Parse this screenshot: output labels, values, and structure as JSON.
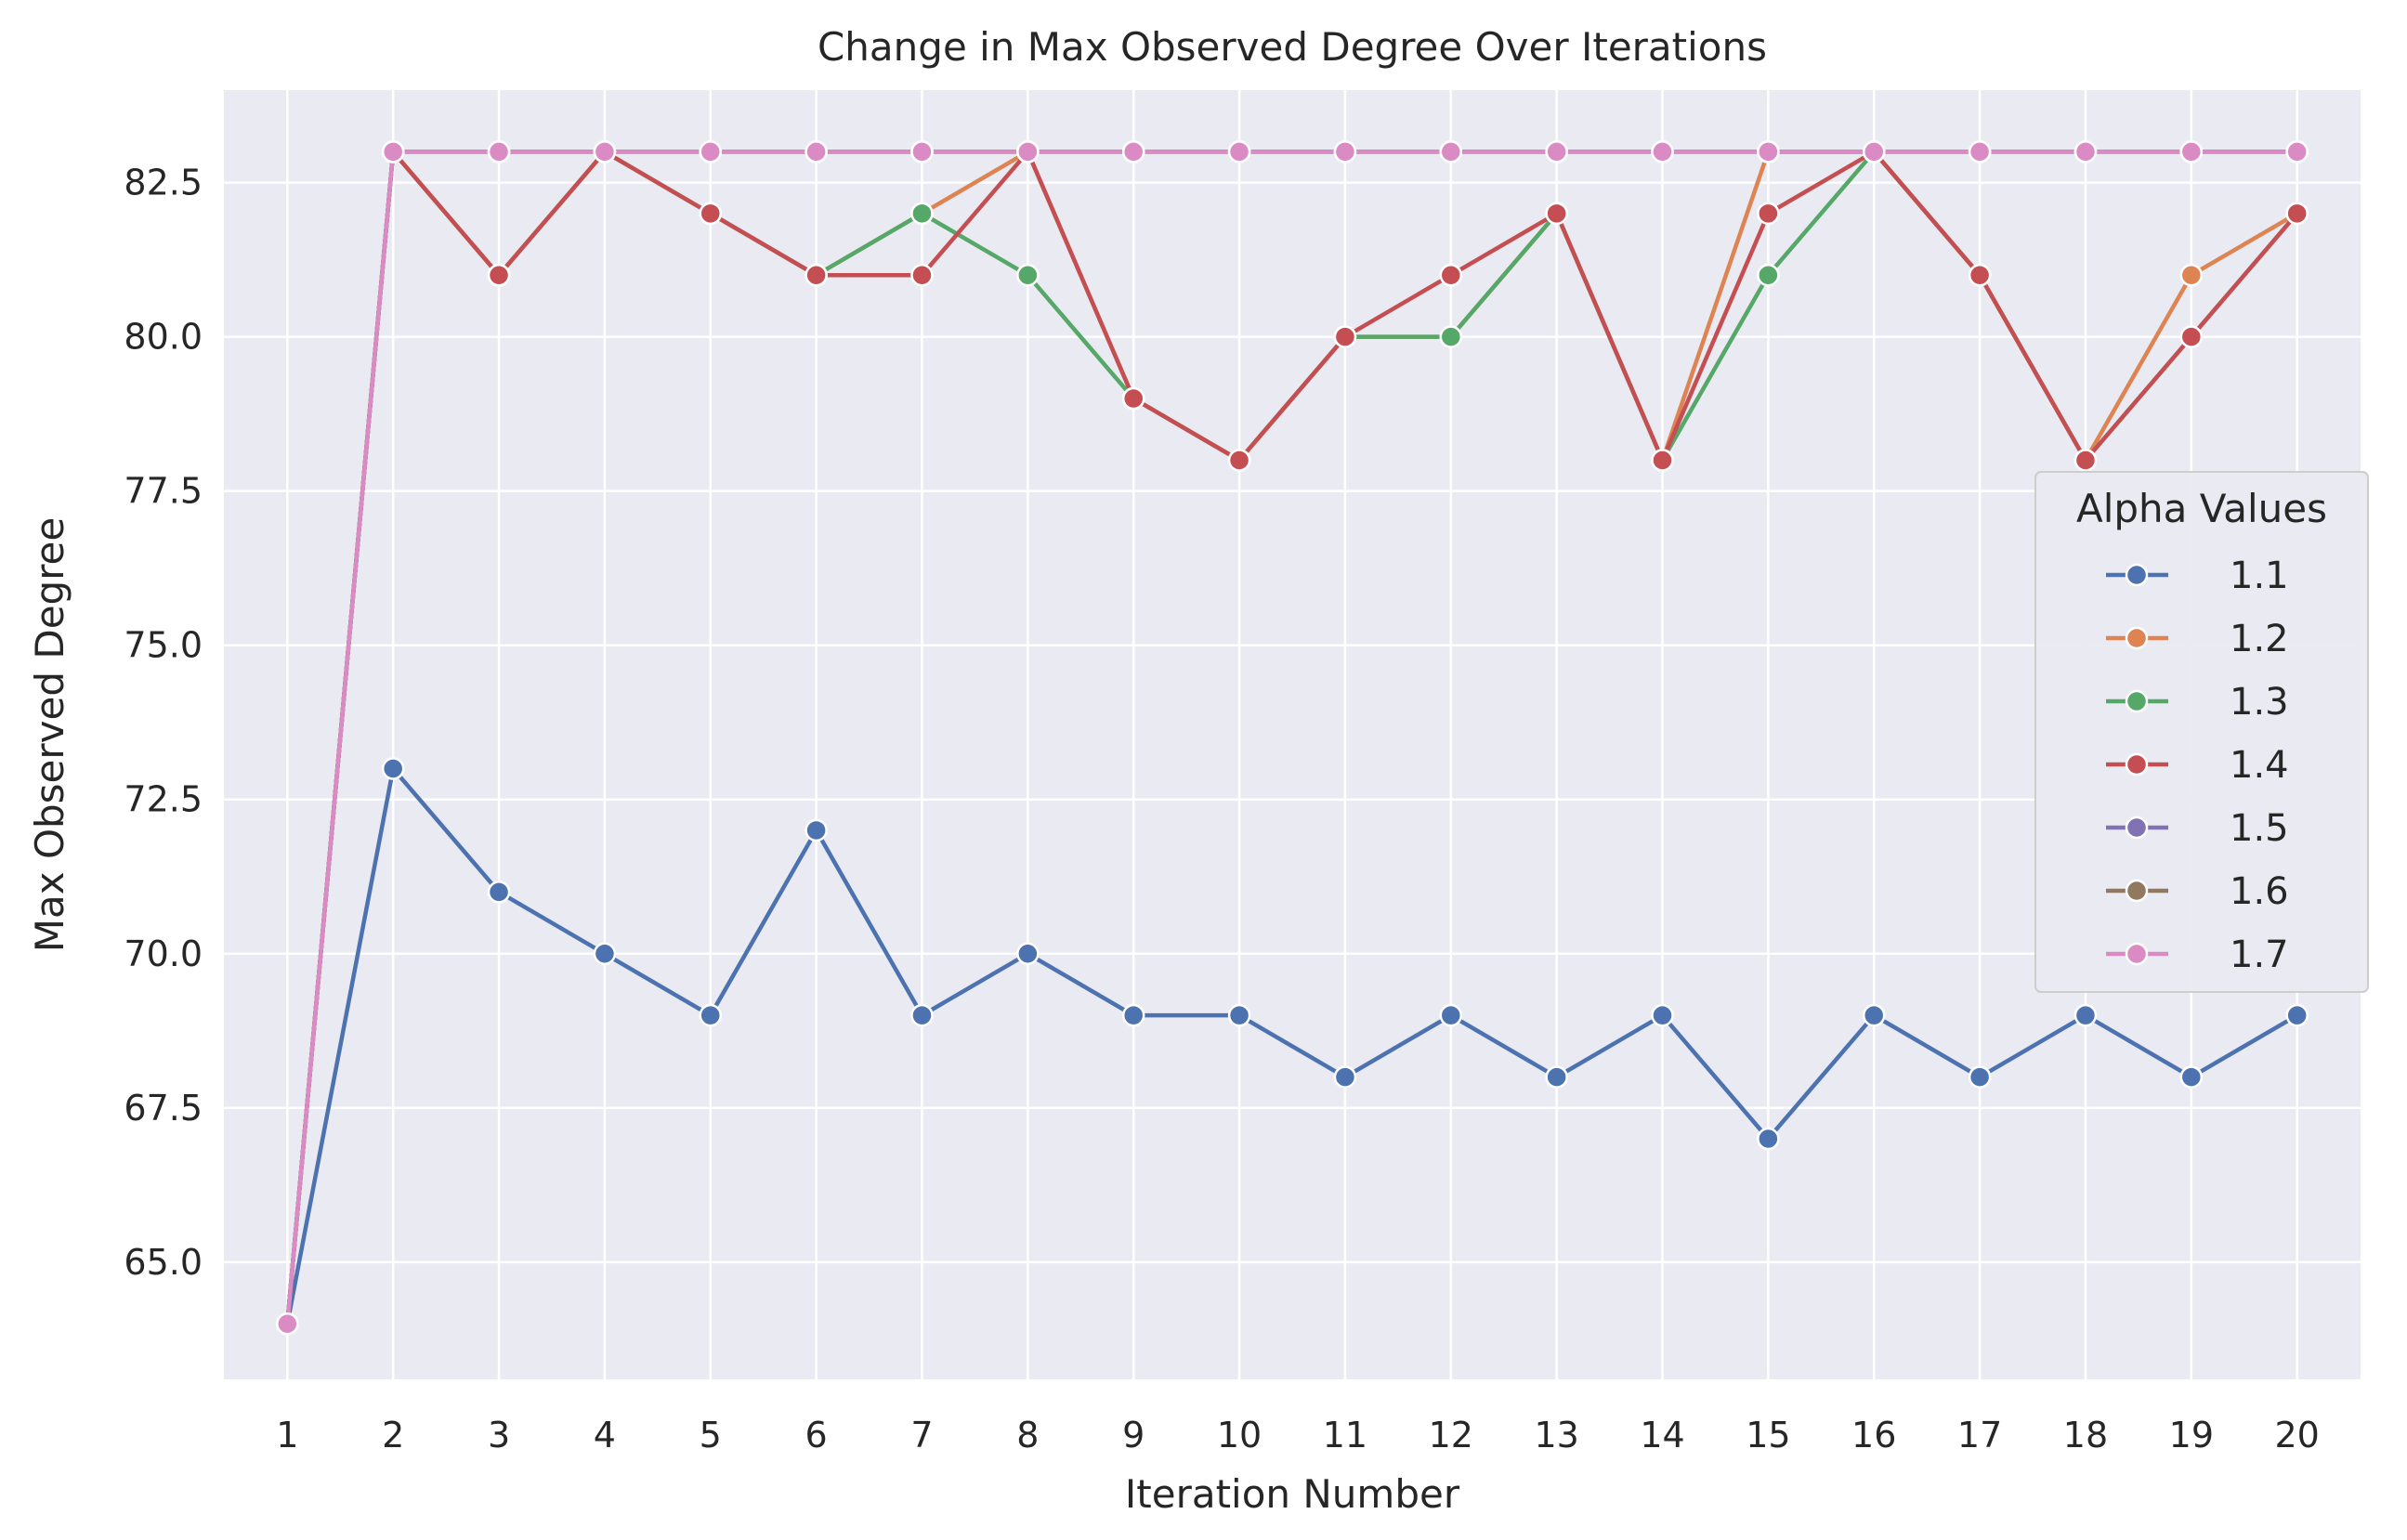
{
  "chart_data": {
    "type": "line",
    "title": "Change in Max Observed Degree Over Iterations",
    "xlabel": "Iteration Number",
    "ylabel": "Max Observed Degree",
    "x": [
      1,
      2,
      3,
      4,
      5,
      6,
      7,
      8,
      9,
      10,
      11,
      12,
      13,
      14,
      15,
      16,
      17,
      18,
      19,
      20
    ],
    "x_ticks": [
      "1",
      "2",
      "3",
      "4",
      "5",
      "6",
      "7",
      "8",
      "9",
      "10",
      "11",
      "12",
      "13",
      "14",
      "15",
      "16",
      "17",
      "18",
      "19",
      "20"
    ],
    "y_ticks": [
      "65.0",
      "67.5",
      "70.0",
      "72.5",
      "75.0",
      "77.5",
      "80.0",
      "82.5"
    ],
    "y_tick_values": [
      65.0,
      67.5,
      70.0,
      72.5,
      75.0,
      77.5,
      80.0,
      82.5
    ],
    "xlim": [
      0.4,
      20.6
    ],
    "ylim": [
      63.1,
      84.0
    ],
    "grid": true,
    "legend_title": "Alpha Values",
    "legend_position": "center-right",
    "series": [
      {
        "name": "1.1",
        "color": "#4c72b0",
        "values": [
          64,
          73,
          71,
          70,
          69,
          72,
          69,
          70,
          69,
          69,
          68,
          69,
          68,
          69,
          67,
          69,
          68,
          69,
          68,
          69
        ]
      },
      {
        "name": "1.2",
        "color": "#dd8452",
        "values": [
          64,
          83,
          81,
          83,
          82,
          81,
          82,
          83,
          79,
          78,
          80,
          80,
          82,
          78,
          83,
          83,
          81,
          78,
          81,
          82
        ]
      },
      {
        "name": "1.3",
        "color": "#55a868",
        "values": [
          64,
          83,
          81,
          83,
          82,
          81,
          82,
          81,
          79,
          78,
          80,
          80,
          82,
          78,
          81,
          83,
          81,
          78,
          80,
          82
        ]
      },
      {
        "name": "1.4",
        "color": "#c44e52",
        "values": [
          64,
          83,
          81,
          83,
          82,
          81,
          81,
          83,
          79,
          78,
          80,
          81,
          82,
          78,
          82,
          83,
          81,
          78,
          80,
          82
        ]
      },
      {
        "name": "1.5",
        "color": "#8172b3",
        "values": [
          64,
          83,
          83,
          83,
          83,
          83,
          83,
          83,
          83,
          83,
          83,
          83,
          83,
          83,
          83,
          83,
          83,
          83,
          83,
          83
        ]
      },
      {
        "name": "1.6",
        "color": "#937860",
        "values": [
          64,
          83,
          83,
          83,
          83,
          83,
          83,
          83,
          83,
          83,
          83,
          83,
          83,
          83,
          83,
          83,
          83,
          83,
          83,
          83
        ]
      },
      {
        "name": "1.7",
        "color": "#da8bc3",
        "values": [
          64,
          83,
          83,
          83,
          83,
          83,
          83,
          83,
          83,
          83,
          83,
          83,
          83,
          83,
          83,
          83,
          83,
          83,
          83,
          83
        ]
      }
    ]
  },
  "style": {
    "plot_background": "#eaeaf2",
    "grid_color": "#ffffff",
    "text_color": "#262626"
  }
}
